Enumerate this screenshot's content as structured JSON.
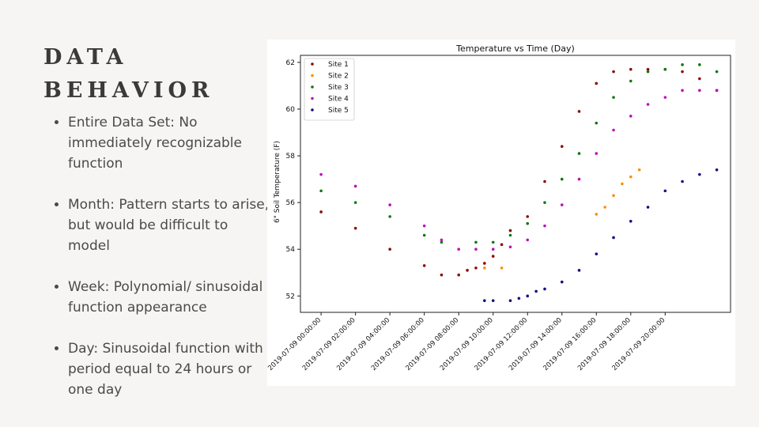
{
  "slide": {
    "title_line1": "DATA",
    "title_line2": "BEHAVIOR",
    "bullets": [
      "Entire Data Set: No immediately recognizable function",
      "Month: Pattern starts to arise, but would be difficult to model",
      "Week: Polynomial/ sinusoidal function appearance",
      "Day: Sinusoidal function with period equal to 24 hours or one day"
    ]
  },
  "chart_data": {
    "type": "scatter",
    "title": "Temperature vs Time (Day)",
    "xlabel": "",
    "ylabel": "6\" Soil Temperature (F)",
    "x_unit": "hours after 2019-07-09 00:00:00",
    "xlim": [
      -1.2,
      23.8
    ],
    "ylim": [
      51.3,
      62.3
    ],
    "x_ticks": [
      "2019-07-09 00:00:00",
      "2019-07-09 02:00:00",
      "2019-07-09 04:00:00",
      "2019-07-09 06:00:00",
      "2019-07-09 08:00:00",
      "2019-07-09 10:00:00",
      "2019-07-09 12:00:00",
      "2019-07-09 14:00:00",
      "2019-07-09 16:00:00",
      "2019-07-09 18:00:00",
      "2019-07-09 20:00:00"
    ],
    "y_ticks": [
      52,
      54,
      56,
      58,
      60,
      62
    ],
    "grid": false,
    "legend_position": "top-left",
    "colors": [
      "#8b0a0a",
      "#ff8c00",
      "#117711",
      "#bb11bb",
      "#101085"
    ],
    "series": [
      {
        "name": "Site 1",
        "color": "#8b0a0a",
        "points": [
          [
            0,
            55.6
          ],
          [
            2,
            54.9
          ],
          [
            4,
            54.0
          ],
          [
            6,
            53.3
          ],
          [
            7,
            52.9
          ],
          [
            8,
            52.9
          ],
          [
            8.5,
            53.1
          ],
          [
            9,
            53.2
          ],
          [
            9.5,
            53.4
          ],
          [
            10,
            53.7
          ],
          [
            10.5,
            54.2
          ],
          [
            11,
            54.8
          ],
          [
            12,
            55.4
          ],
          [
            13,
            56.9
          ],
          [
            14,
            58.4
          ],
          [
            15,
            59.9
          ],
          [
            16,
            61.1
          ],
          [
            17,
            61.6
          ],
          [
            18,
            61.7
          ],
          [
            19,
            61.7
          ],
          [
            20,
            61.7
          ],
          [
            21,
            61.6
          ],
          [
            22,
            61.3
          ],
          [
            23,
            60.8
          ]
        ]
      },
      {
        "name": "Site 2",
        "color": "#ff8c00",
        "points": [
          [
            9.5,
            53.2
          ],
          [
            10.5,
            53.2
          ],
          [
            16,
            55.5
          ],
          [
            16.5,
            55.8
          ],
          [
            17,
            56.3
          ],
          [
            17.5,
            56.8
          ],
          [
            18,
            57.1
          ],
          [
            18.5,
            57.4
          ]
        ]
      },
      {
        "name": "Site 3",
        "color": "#117711",
        "points": [
          [
            0,
            56.5
          ],
          [
            2,
            56.0
          ],
          [
            4,
            55.4
          ],
          [
            6,
            54.6
          ],
          [
            7,
            54.3
          ],
          [
            9,
            54.3
          ],
          [
            10,
            54.3
          ],
          [
            11,
            54.6
          ],
          [
            12,
            55.1
          ],
          [
            13,
            56.0
          ],
          [
            14,
            57.0
          ],
          [
            15,
            58.1
          ],
          [
            16,
            59.4
          ],
          [
            17,
            60.5
          ],
          [
            18,
            61.2
          ],
          [
            19,
            61.6
          ],
          [
            20,
            61.7
          ],
          [
            21,
            61.9
          ],
          [
            22,
            61.9
          ],
          [
            23,
            61.6
          ]
        ]
      },
      {
        "name": "Site 4",
        "color": "#bb11bb",
        "points": [
          [
            0,
            57.2
          ],
          [
            2,
            56.7
          ],
          [
            4,
            55.9
          ],
          [
            6,
            55.0
          ],
          [
            7,
            54.4
          ],
          [
            8,
            54.0
          ],
          [
            9,
            54.0
          ],
          [
            10,
            54.0
          ],
          [
            11,
            54.1
          ],
          [
            12,
            54.4
          ],
          [
            13,
            55.0
          ],
          [
            14,
            55.9
          ],
          [
            15,
            57.0
          ],
          [
            16,
            58.1
          ],
          [
            17,
            59.1
          ],
          [
            18,
            59.7
          ],
          [
            19,
            60.2
          ],
          [
            20,
            60.5
          ],
          [
            21,
            60.8
          ],
          [
            22,
            60.8
          ],
          [
            23,
            60.8
          ]
        ]
      },
      {
        "name": "Site 5",
        "color": "#101085",
        "points": [
          [
            9.5,
            51.8
          ],
          [
            10,
            51.8
          ],
          [
            11,
            51.8
          ],
          [
            11.5,
            51.9
          ],
          [
            12,
            52.0
          ],
          [
            12.5,
            52.2
          ],
          [
            13,
            52.3
          ],
          [
            14,
            52.6
          ],
          [
            15,
            53.1
          ],
          [
            16,
            53.8
          ],
          [
            17,
            54.5
          ],
          [
            18,
            55.2
          ],
          [
            19,
            55.8
          ],
          [
            20,
            56.5
          ],
          [
            21,
            56.9
          ],
          [
            22,
            57.2
          ],
          [
            23,
            57.4
          ]
        ]
      }
    ]
  }
}
